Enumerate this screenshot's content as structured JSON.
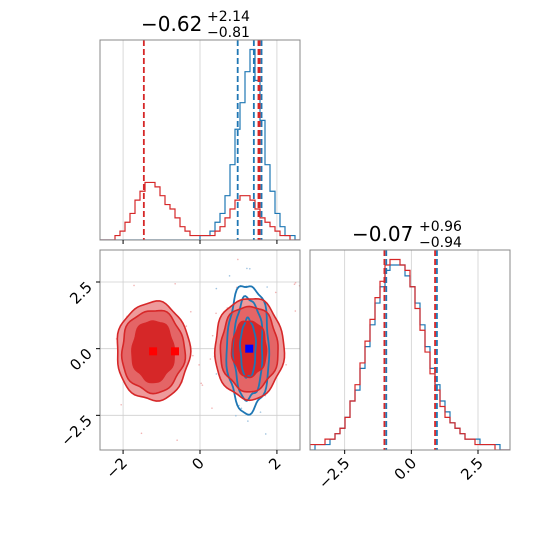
{
  "colors": {
    "red": "#d62728",
    "blue": "#1f77b4",
    "red_fill_light": "#ee9a9b",
    "red_fill_dark": "#dd3a3b",
    "grid": "#cfcfcf",
    "frame": "#888888",
    "marker_red": "#ff0000",
    "marker_blue": "#0000ff"
  },
  "titles": {
    "x": {
      "median": "−0.62",
      "plus": "+2.14",
      "minus": "−0.81"
    },
    "y": {
      "median": "−0.07",
      "plus": "+0.96",
      "minus": "−0.94"
    }
  },
  "chart_data": [
    {
      "type": "histogram",
      "name": "marginal-x",
      "x_range": [
        -2.6,
        2.6
      ],
      "bins": 40,
      "title": "−0.62 +2.14 −0.81",
      "series": [
        {
          "color": "red",
          "counts": [
            0,
            0,
            0,
            1,
            2,
            4,
            6,
            9,
            11,
            13,
            13,
            12,
            10,
            8,
            7,
            5,
            3,
            2,
            1,
            1,
            1,
            1,
            1,
            2,
            3,
            5,
            7,
            9,
            10,
            10,
            9,
            7,
            5,
            4,
            3,
            2,
            1,
            1,
            0,
            0
          ],
          "quantile_lines": [
            -1.46,
            1.52,
            1.55
          ]
        },
        {
          "color": "blue",
          "counts": [
            0,
            0,
            0,
            0,
            0,
            0,
            0,
            0,
            0,
            0,
            0,
            0,
            0,
            0,
            0,
            0,
            0,
            0,
            0,
            0,
            1,
            1,
            2,
            4,
            6,
            10,
            17,
            25,
            31,
            38,
            43,
            36,
            27,
            17,
            11,
            6,
            3,
            1,
            1,
            0
          ],
          "quantile_lines": [
            0.98,
            1.4,
            1.6
          ]
        }
      ],
      "xticks": [
        -2,
        0,
        2
      ]
    },
    {
      "type": "histogram",
      "name": "marginal-y",
      "x_range": [
        -3.8,
        3.7
      ],
      "bins": 40,
      "title": "−0.07 +0.96 −0.94",
      "series": [
        {
          "color": "red",
          "counts": [
            1,
            1,
            1,
            2,
            2,
            3,
            4,
            6,
            9,
            12,
            16,
            20,
            24,
            28,
            31,
            34,
            35,
            35,
            34,
            33,
            30,
            26,
            22,
            18,
            14,
            11,
            8,
            6,
            5,
            4,
            3,
            2,
            2,
            1,
            1,
            1,
            1,
            0,
            0,
            0
          ],
          "quantile_lines": [
            -1.01,
            0.89
          ]
        },
        {
          "color": "blue",
          "counts": [
            0,
            1,
            1,
            1,
            2,
            3,
            4,
            6,
            9,
            11,
            15,
            19,
            23,
            27,
            30,
            33,
            34,
            34,
            34,
            32,
            30,
            27,
            23,
            19,
            15,
            12,
            9,
            7,
            5,
            4,
            3,
            2,
            2,
            2,
            1,
            1,
            1,
            1,
            0,
            0
          ],
          "quantile_lines": [
            -0.94,
            0.96
          ]
        }
      ],
      "xticks": [
        -2.5,
        0.0,
        2.5
      ]
    },
    {
      "type": "contour",
      "name": "joint-2d",
      "x_range": [
        -2.6,
        2.6
      ],
      "y_range": [
        -3.8,
        3.7
      ],
      "xticks": [
        -2,
        0,
        2
      ],
      "yticks": [
        -2.5,
        0.0,
        2.5
      ],
      "red_modes": [
        {
          "cx": -1.22,
          "cy": -0.1,
          "levels": [
            [
              0.95,
              1.85
            ],
            [
              0.82,
              1.55
            ],
            [
              0.55,
              1.15
            ]
          ]
        },
        {
          "cx": 1.28,
          "cy": 0.0,
          "levels": [
            [
              0.9,
              1.9
            ],
            [
              0.75,
              1.6
            ],
            [
              0.45,
              1.05
            ]
          ]
        }
      ],
      "blue_mode": {
        "cx": 1.25,
        "cy": 0.0,
        "levels": [
          [
            0.55,
            2.4
          ],
          [
            0.38,
            1.9
          ],
          [
            0.2,
            1.1
          ]
        ]
      },
      "markers_red": [
        [
          -1.22,
          -0.1
        ],
        [
          -0.65,
          -0.1
        ]
      ],
      "markers_blue": [
        [
          1.28,
          0.0
        ]
      ]
    }
  ]
}
